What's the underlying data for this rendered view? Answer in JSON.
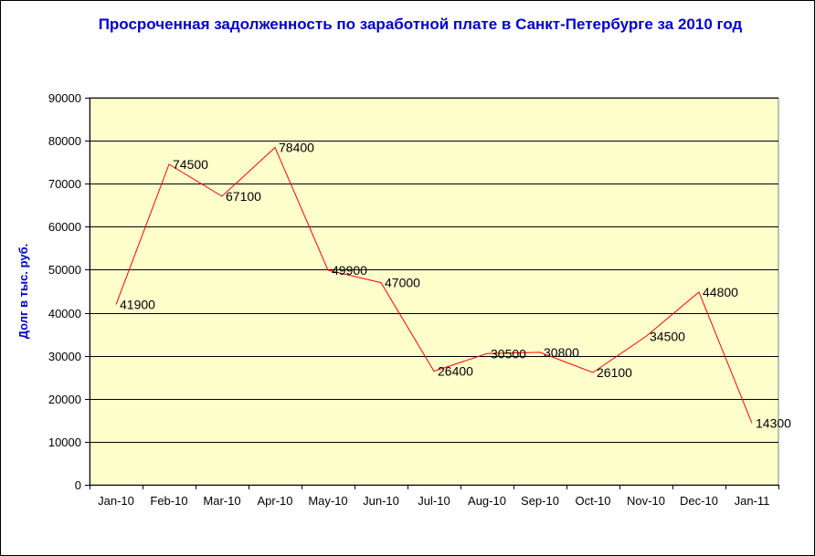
{
  "chart_data": {
    "type": "line",
    "title": "Просроченная задолженность по заработной плате в Санкт-Петербурге за 2010 год",
    "ylabel": "Долг в тыс. руб.",
    "xlabel": "",
    "categories": [
      "Jan-10",
      "Feb-10",
      "Mar-10",
      "Apr-10",
      "May-10",
      "Jun-10",
      "Jul-10",
      "Aug-10",
      "Sep-10",
      "Oct-10",
      "Nov-10",
      "Dec-10",
      "Jan-11"
    ],
    "series": [
      {
        "values": [
          41900,
          74500,
          67100,
          78400,
          49900,
          47000,
          26400,
          30500,
          30800,
          26100,
          34500,
          44800,
          14300
        ]
      }
    ],
    "ylim": [
      0,
      90000
    ],
    "yticks": [
      0,
      10000,
      20000,
      30000,
      40000,
      50000,
      60000,
      70000,
      80000,
      90000
    ],
    "grid": true,
    "legend": "none",
    "colors": {
      "line": "#ff0000",
      "plot_bg": "#ffffcc",
      "title": "#0000cc"
    }
  }
}
